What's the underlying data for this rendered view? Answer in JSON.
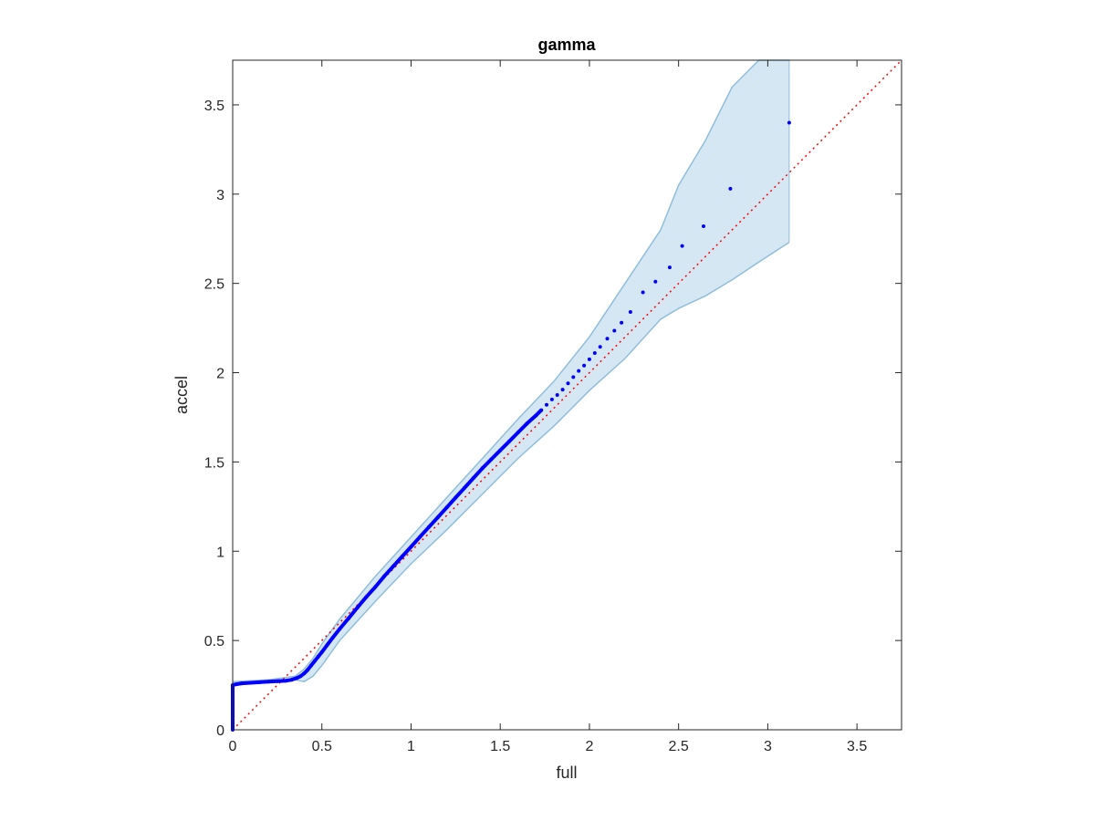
{
  "chart_data": {
    "type": "scatter",
    "title": "gamma",
    "xlabel": "full",
    "ylabel": "accel",
    "xlim": [
      0,
      3.75
    ],
    "ylim": [
      0,
      3.75
    ],
    "xticks": [
      0,
      0.5,
      1,
      1.5,
      2,
      2.5,
      3,
      3.5
    ],
    "xtick_labels": [
      "0",
      "0.5",
      "1",
      "1.5",
      "2",
      "2.5",
      "3",
      "3.5"
    ],
    "yticks": [
      0,
      0.5,
      1,
      1.5,
      2,
      2.5,
      3,
      3.5
    ],
    "ytick_labels": [
      "0",
      "0.5",
      "1",
      "1.5",
      "2",
      "2.5",
      "3",
      "3.5"
    ],
    "grid": false,
    "legend": "none",
    "colors": {
      "points": "#0000ff",
      "band_fill": "#d6e7f4",
      "band_edge": "#8fbedb",
      "reference": "#ff0000",
      "axes": "#262626"
    },
    "confidence_band": {
      "x": [
        0.0,
        0.2,
        0.35,
        0.4,
        0.45,
        0.5,
        0.6,
        0.8,
        1.0,
        1.2,
        1.4,
        1.6,
        1.8,
        2.0,
        2.2,
        2.4,
        2.5,
        2.65,
        2.8,
        2.95,
        3.12
      ],
      "upper": [
        0.27,
        0.28,
        0.3,
        0.34,
        0.4,
        0.48,
        0.62,
        0.86,
        1.08,
        1.3,
        1.52,
        1.74,
        1.95,
        2.2,
        2.5,
        2.8,
        3.05,
        3.3,
        3.6,
        3.75,
        3.75
      ],
      "lower": [
        0.26,
        0.27,
        0.28,
        0.27,
        0.3,
        0.36,
        0.5,
        0.72,
        0.93,
        1.12,
        1.32,
        1.52,
        1.7,
        1.9,
        2.08,
        2.3,
        2.36,
        2.43,
        2.52,
        2.62,
        2.73
      ]
    },
    "reference_line": {
      "x": [
        0,
        3.75
      ],
      "y": [
        0,
        3.75
      ],
      "style": "dotted"
    },
    "series": [
      {
        "x": [
          0.0,
          0.0,
          0.0,
          0.0,
          0.0,
          0.0,
          0.0,
          0.0,
          0.0,
          0.0,
          0.0,
          0.0,
          0.0,
          0.0,
          0.02,
          0.05,
          0.1,
          0.15,
          0.2,
          0.25,
          0.3,
          0.33,
          0.36,
          0.38,
          0.4,
          0.42,
          0.44,
          0.46,
          0.48,
          0.5,
          0.53,
          0.56,
          0.6,
          0.65,
          0.7,
          0.75,
          0.8,
          0.85,
          0.9,
          0.95,
          1.0,
          1.05,
          1.1,
          1.15,
          1.2,
          1.25,
          1.3,
          1.35,
          1.4,
          1.45,
          1.5,
          1.55,
          1.6,
          1.65,
          1.7,
          1.73,
          1.76,
          1.79,
          1.82,
          1.85,
          1.88,
          1.91,
          1.94,
          1.97,
          2.0,
          2.03,
          2.06,
          2.1,
          2.14,
          2.18,
          2.23,
          2.3,
          2.37,
          2.45,
          2.52,
          2.64,
          2.79,
          3.12
        ],
        "y": [
          0.0,
          0.02,
          0.04,
          0.06,
          0.08,
          0.1,
          0.12,
          0.14,
          0.16,
          0.18,
          0.2,
          0.22,
          0.24,
          0.25,
          0.255,
          0.26,
          0.263,
          0.266,
          0.27,
          0.272,
          0.275,
          0.28,
          0.29,
          0.3,
          0.315,
          0.335,
          0.36,
          0.385,
          0.41,
          0.435,
          0.475,
          0.515,
          0.565,
          0.625,
          0.685,
          0.745,
          0.8,
          0.86,
          0.915,
          0.97,
          1.025,
          1.08,
          1.135,
          1.19,
          1.245,
          1.3,
          1.355,
          1.41,
          1.465,
          1.515,
          1.565,
          1.615,
          1.665,
          1.715,
          1.76,
          1.79,
          1.82,
          1.85,
          1.875,
          1.905,
          1.94,
          1.975,
          2.01,
          2.04,
          2.075,
          2.11,
          2.145,
          2.19,
          2.235,
          2.28,
          2.34,
          2.45,
          2.51,
          2.59,
          2.71,
          2.82,
          3.03,
          3.4
        ]
      }
    ]
  }
}
